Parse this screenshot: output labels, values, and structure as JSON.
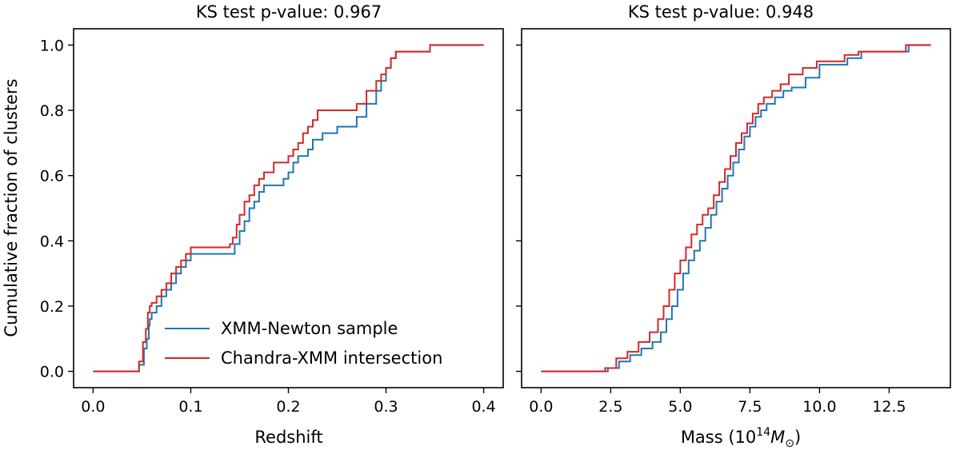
{
  "chart_data": [
    {
      "type": "line",
      "title": "KS test p-value: 0.967",
      "xlabel": "Redshift",
      "ylabel": "Cumulative fraction of clusters",
      "xlim": [
        -0.02,
        0.42
      ],
      "ylim": [
        -0.05,
        1.05
      ],
      "xticks": [
        0.0,
        0.1,
        0.2,
        0.3,
        0.4
      ],
      "xtick_labels": [
        "0.0",
        "0.1",
        "0.2",
        "0.3",
        "0.4"
      ],
      "yticks": [
        0.0,
        0.2,
        0.4,
        0.6,
        0.8,
        1.0
      ],
      "ytick_labels": [
        "0.0",
        "0.2",
        "0.4",
        "0.6",
        "0.8",
        "1.0"
      ],
      "legend": {
        "position": "lower-right"
      },
      "series": [
        {
          "name": "XMM-Newton sample",
          "color": "#1f77b4",
          "x": [
            0.0,
            0.045,
            0.047,
            0.052,
            0.055,
            0.057,
            0.058,
            0.06,
            0.065,
            0.07,
            0.075,
            0.08,
            0.085,
            0.09,
            0.095,
            0.1,
            0.14,
            0.145,
            0.15,
            0.155,
            0.16,
            0.165,
            0.17,
            0.175,
            0.185,
            0.195,
            0.2,
            0.205,
            0.21,
            0.22,
            0.225,
            0.235,
            0.25,
            0.26,
            0.27,
            0.28,
            0.29,
            0.295,
            0.3,
            0.305,
            0.31,
            0.345,
            0.4
          ],
          "y": [
            0.0,
            0.0,
            0.02,
            0.07,
            0.1,
            0.14,
            0.16,
            0.18,
            0.2,
            0.23,
            0.25,
            0.27,
            0.3,
            0.32,
            0.34,
            0.36,
            0.36,
            0.39,
            0.43,
            0.46,
            0.5,
            0.52,
            0.55,
            0.57,
            0.57,
            0.59,
            0.61,
            0.64,
            0.66,
            0.68,
            0.71,
            0.73,
            0.75,
            0.75,
            0.78,
            0.82,
            0.86,
            0.89,
            0.93,
            0.96,
            0.98,
            1.0,
            1.0
          ]
        },
        {
          "name": "Chandra-XMM intersection",
          "color": "#d62728",
          "x": [
            0.0,
            0.044,
            0.047,
            0.051,
            0.054,
            0.056,
            0.058,
            0.06,
            0.065,
            0.07,
            0.075,
            0.08,
            0.085,
            0.09,
            0.095,
            0.1,
            0.14,
            0.143,
            0.147,
            0.15,
            0.155,
            0.16,
            0.165,
            0.17,
            0.175,
            0.185,
            0.195,
            0.2,
            0.205,
            0.21,
            0.215,
            0.22,
            0.225,
            0.23,
            0.26,
            0.27,
            0.28,
            0.29,
            0.295,
            0.3,
            0.305,
            0.31,
            0.345,
            0.4
          ],
          "y": [
            0.0,
            0.0,
            0.03,
            0.09,
            0.13,
            0.18,
            0.2,
            0.21,
            0.23,
            0.25,
            0.27,
            0.3,
            0.32,
            0.34,
            0.36,
            0.38,
            0.39,
            0.41,
            0.45,
            0.48,
            0.52,
            0.54,
            0.57,
            0.59,
            0.61,
            0.64,
            0.64,
            0.66,
            0.68,
            0.7,
            0.73,
            0.75,
            0.77,
            0.8,
            0.8,
            0.82,
            0.86,
            0.89,
            0.91,
            0.93,
            0.96,
            0.98,
            1.0,
            1.0
          ]
        }
      ]
    },
    {
      "type": "line",
      "title": "KS test p-value: 0.948",
      "xlabel_prefix": "Mass (10",
      "xlabel_exponent": "14",
      "xlabel_var": "M",
      "xlabel_subscript": "⊙",
      "xlabel_suffix": ")",
      "xlim": [
        -0.7,
        14.7
      ],
      "ylim": [
        -0.05,
        1.05
      ],
      "xticks": [
        0.0,
        2.5,
        5.0,
        7.5,
        10.0,
        12.5
      ],
      "xtick_labels": [
        "0.0",
        "2.5",
        "5.0",
        "7.5",
        "10.0",
        "12.5"
      ],
      "yticks": [
        0.0,
        0.2,
        0.4,
        0.6,
        0.8,
        1.0
      ],
      "series": [
        {
          "name": "XMM-Newton sample",
          "color": "#1f77b4",
          "x": [
            0.0,
            2.4,
            2.8,
            3.2,
            3.6,
            4.0,
            4.3,
            4.5,
            4.7,
            4.9,
            5.1,
            5.3,
            5.5,
            5.7,
            5.9,
            6.1,
            6.3,
            6.5,
            6.7,
            6.9,
            7.1,
            7.3,
            7.5,
            7.7,
            7.9,
            8.1,
            8.4,
            8.7,
            9.0,
            9.5,
            10.0,
            11.0,
            11.5,
            12.0,
            13.2,
            14.0
          ],
          "y": [
            0.0,
            0.01,
            0.03,
            0.05,
            0.07,
            0.09,
            0.12,
            0.16,
            0.2,
            0.25,
            0.3,
            0.34,
            0.37,
            0.4,
            0.44,
            0.48,
            0.52,
            0.56,
            0.6,
            0.64,
            0.68,
            0.72,
            0.75,
            0.78,
            0.8,
            0.82,
            0.84,
            0.86,
            0.87,
            0.9,
            0.94,
            0.96,
            0.98,
            0.98,
            1.0,
            1.0
          ]
        },
        {
          "name": "Chandra-XMM intersection",
          "color": "#d62728",
          "x": [
            0.0,
            2.3,
            2.7,
            3.1,
            3.5,
            3.9,
            4.2,
            4.4,
            4.6,
            4.8,
            5.0,
            5.2,
            5.4,
            5.6,
            5.8,
            6.0,
            6.2,
            6.4,
            6.6,
            6.8,
            7.0,
            7.2,
            7.4,
            7.6,
            7.8,
            8.0,
            8.3,
            8.6,
            8.9,
            9.4,
            9.9,
            10.9,
            11.4,
            11.9,
            13.1,
            14.0
          ],
          "y": [
            0.0,
            0.01,
            0.04,
            0.06,
            0.09,
            0.12,
            0.16,
            0.2,
            0.25,
            0.3,
            0.34,
            0.38,
            0.42,
            0.45,
            0.48,
            0.5,
            0.54,
            0.58,
            0.62,
            0.66,
            0.7,
            0.73,
            0.76,
            0.79,
            0.82,
            0.84,
            0.86,
            0.88,
            0.91,
            0.93,
            0.95,
            0.97,
            0.98,
            0.98,
            1.0,
            1.0
          ]
        }
      ]
    }
  ]
}
